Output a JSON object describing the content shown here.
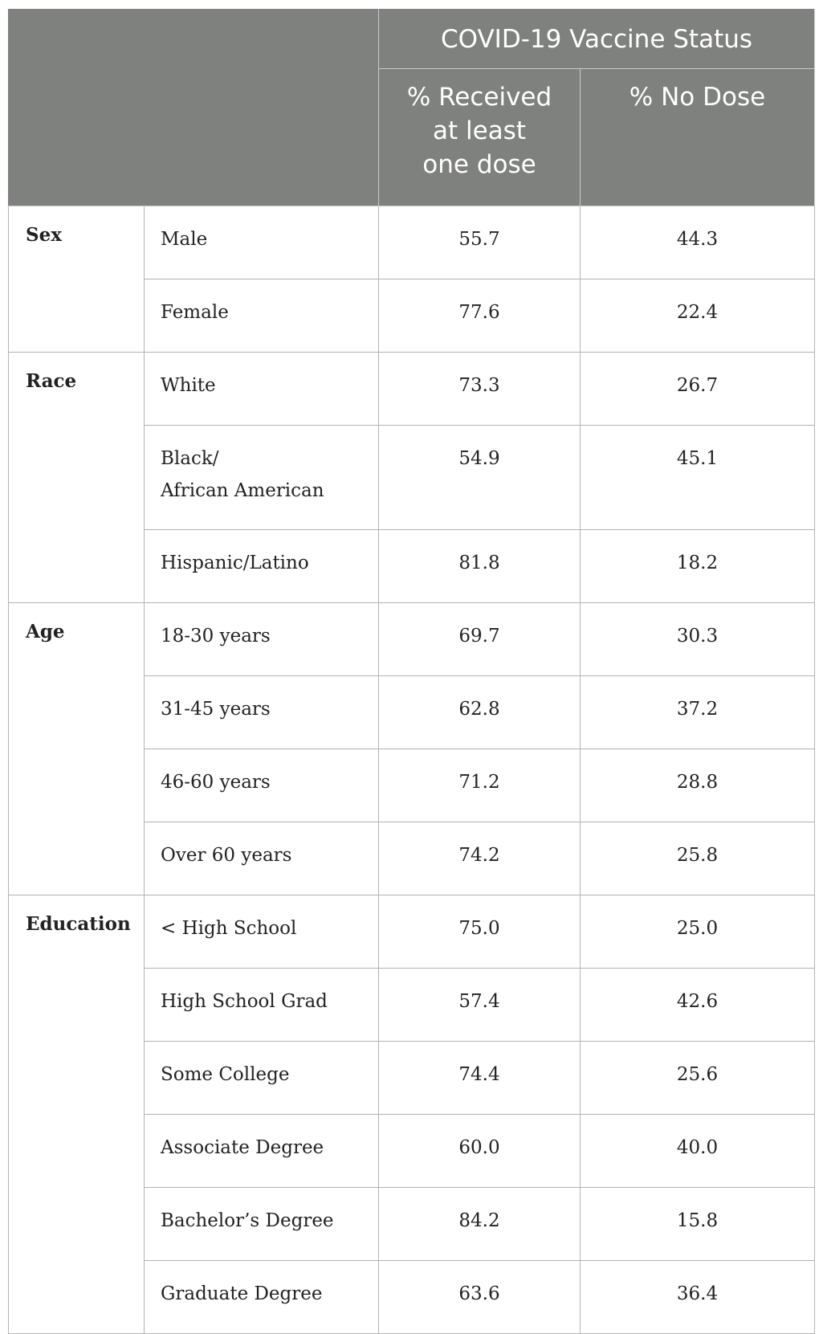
{
  "header": {
    "group_title": "COVID-19 Vaccine Status",
    "col_received": [
      "% Received",
      "at least",
      "one dose"
    ],
    "col_no_dose": "% No Dose"
  },
  "groups": [
    {
      "label": "Sex",
      "rows": [
        {
          "category": "Male",
          "received": "55.7",
          "no_dose": "44.3"
        },
        {
          "category": "Female",
          "received": "77.6",
          "no_dose": "22.4"
        }
      ]
    },
    {
      "label": "Race",
      "rows": [
        {
          "category": "White",
          "received": "73.3",
          "no_dose": "26.7"
        },
        {
          "category": "Black/",
          "category_line2": "African American",
          "received": "54.9",
          "no_dose": "45.1"
        },
        {
          "category": "Hispanic/Latino",
          "received": "81.8",
          "no_dose": "18.2"
        }
      ]
    },
    {
      "label": "Age",
      "rows": [
        {
          "category": "18-30 years",
          "received": "69.7",
          "no_dose": "30.3"
        },
        {
          "category": "31-45 years",
          "received": "62.8",
          "no_dose": "37.2"
        },
        {
          "category": "46-60 years",
          "received": "71.2",
          "no_dose": "28.8"
        },
        {
          "category": "Over 60 years",
          "received": "74.2",
          "no_dose": "25.8"
        }
      ]
    },
    {
      "label": "Education",
      "rows": [
        {
          "category": "< High School",
          "received": "75.0",
          "no_dose": "25.0"
        },
        {
          "category": "High School Grad",
          "received": "57.4",
          "no_dose": "42.6"
        },
        {
          "category": "Some College",
          "received": "74.4",
          "no_dose": "25.6"
        },
        {
          "category": "Associate Degree",
          "received": "60.0",
          "no_dose": "40.0"
        },
        {
          "category": "Bachelor’s Degree",
          "received": "84.2",
          "no_dose": "15.8"
        },
        {
          "category": "Graduate Degree",
          "received": "63.6",
          "no_dose": "36.4"
        }
      ]
    }
  ]
}
